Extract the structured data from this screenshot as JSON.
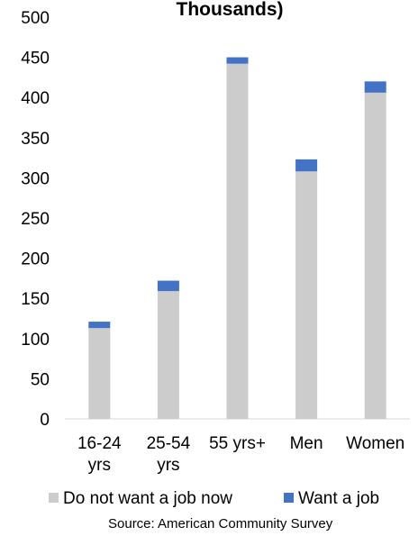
{
  "chart_data": {
    "type": "bar",
    "stacked": true,
    "title": "Thousands)",
    "categories": [
      [
        "16-24",
        "yrs"
      ],
      [
        "25-54",
        "yrs"
      ],
      [
        "55 yrs+"
      ],
      [
        "Men"
      ],
      [
        "Women"
      ]
    ],
    "series": [
      {
        "name": "Do not want a job now",
        "color": "#cccccc",
        "values": [
          113,
          159,
          442,
          308,
          406
        ]
      },
      {
        "name": "Want a job",
        "color": "#4472c4",
        "values": [
          8,
          13,
          8,
          15,
          14
        ]
      }
    ],
    "yticks": [
      "0",
      "50",
      "100",
      "150",
      "200",
      "250",
      "300",
      "350",
      "400",
      "450",
      "500"
    ],
    "ylim": [
      0,
      500
    ],
    "grid": false,
    "legend_position": "bottom"
  },
  "source": "Source: American Community Survey"
}
